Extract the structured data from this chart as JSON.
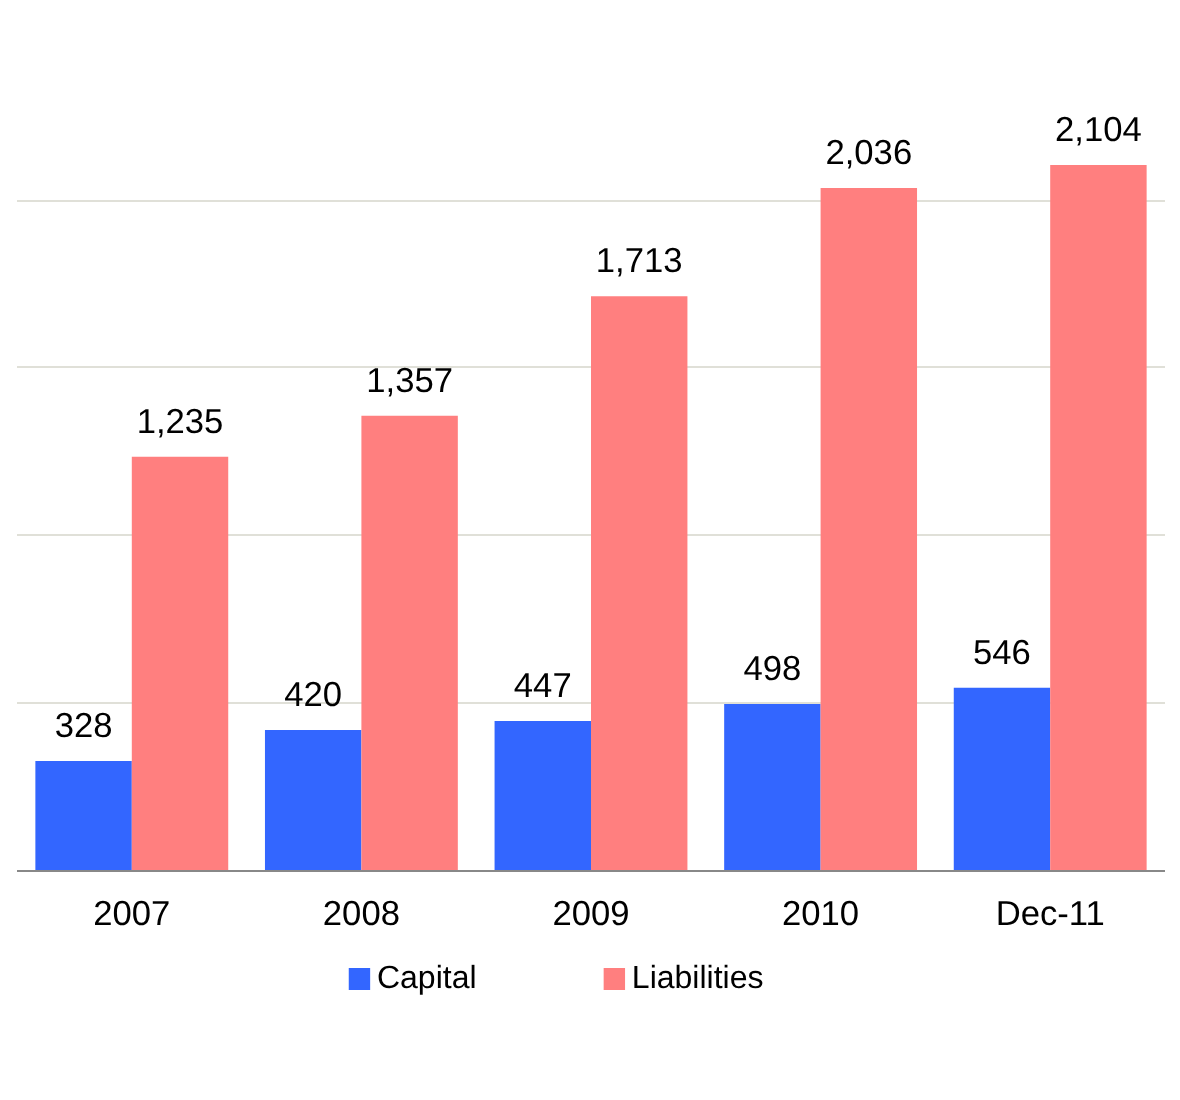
{
  "chart_data": {
    "type": "bar",
    "categories": [
      "2007",
      "2008",
      "2009",
      "2010",
      "Dec-11"
    ],
    "series": [
      {
        "name": "Capital",
        "color": "#3366ff",
        "values": [
          328,
          420,
          447,
          498,
          546
        ],
        "value_labels": [
          "328",
          "420",
          "447",
          "498",
          "546"
        ]
      },
      {
        "name": "Liabilities",
        "color": "#ff7f7f",
        "values": [
          1235,
          1357,
          1713,
          2036,
          2104
        ],
        "value_labels": [
          "1,235",
          "1,357",
          "1,713",
          "2,036",
          "2,104"
        ]
      }
    ],
    "yticks": [
      {
        "value": 0,
        "label": null
      },
      {
        "value": 500,
        "label": null
      },
      {
        "value": 1000,
        "label": null
      },
      {
        "value": 1500,
        "label": null
      },
      {
        "value": 2000,
        "label": null
      }
    ],
    "tick_labels": "x",
    "grid": "y",
    "legend": "bottom"
  }
}
